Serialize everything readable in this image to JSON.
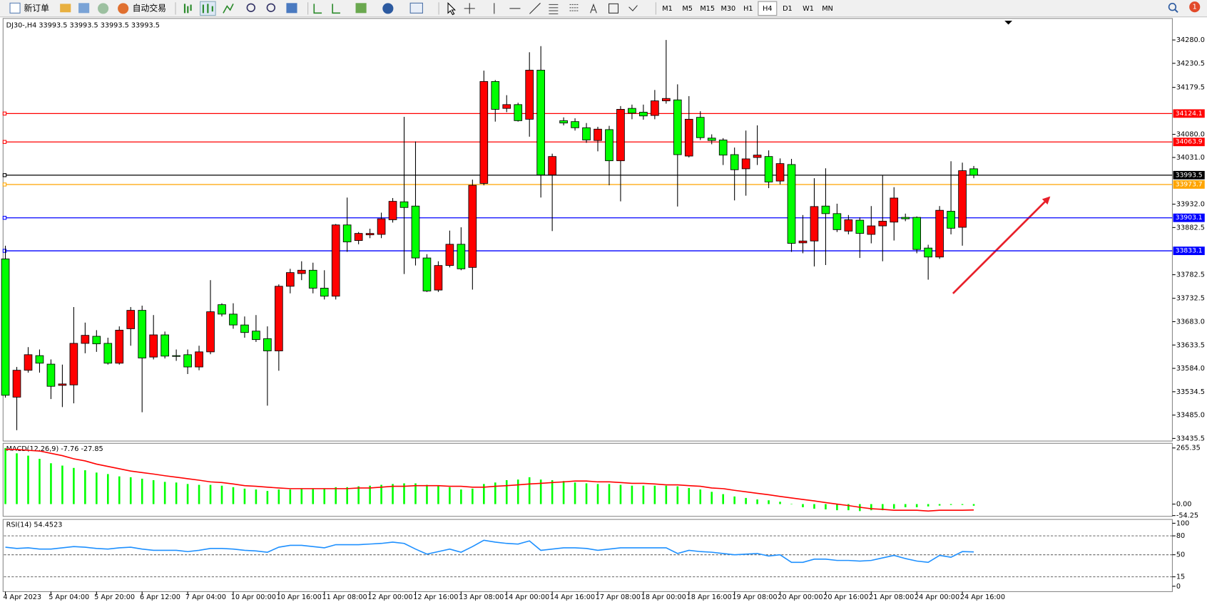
{
  "toolbar": {
    "new_order": "新订单",
    "auto_trading": "自动交易",
    "timeframes": [
      "M1",
      "M5",
      "M15",
      "M30",
      "H1",
      "H4",
      "D1",
      "W1",
      "MN"
    ],
    "active_timeframe": 5,
    "notification_count": 1
  },
  "chart_data": [
    {
      "type": "candlestick",
      "title": "DJ30-,H4  33993.5 33993.5 33993.5 33993.5",
      "categories": [
        "4 Apr 2023",
        null,
        null,
        null,
        "5 Apr 04:00",
        null,
        null,
        null,
        "5 Apr 20:00",
        null,
        null,
        null,
        "6 Apr 12:00",
        null,
        null,
        null,
        "7 Apr 04:00",
        null,
        null,
        null,
        "10 Apr 00:00",
        null,
        null,
        null,
        "10 Apr 16:00",
        null,
        null,
        null,
        "11 Apr 08:00",
        null,
        null,
        null,
        "12 Apr 00:00",
        null,
        null,
        null,
        "12 Apr 16:00",
        null,
        null,
        null,
        "13 Apr 08:00",
        null,
        null,
        null,
        "14 Apr 00:00",
        null,
        null,
        null,
        "14 Apr 16:00",
        null,
        null,
        null,
        "17 Apr 08:00",
        null,
        null,
        null,
        "18 Apr 00:00",
        null,
        null,
        null,
        "18 Apr 16:00",
        null,
        null,
        null,
        "19 Apr 08:00",
        null,
        null,
        null,
        "20 Apr 00:00",
        null,
        null,
        null,
        "20 Apr 16:00",
        null,
        null,
        null,
        "21 Apr 08:00",
        null,
        null,
        null,
        "24 Apr 00:00",
        null,
        null,
        null,
        "24 Apr 16:00",
        null
      ],
      "open": [
        33816,
        33523,
        33580,
        33611,
        33593,
        33548,
        33549,
        33637,
        33652,
        33637,
        33595,
        33668,
        33707,
        33608,
        33655,
        33611,
        33613,
        33587,
        33619,
        33719,
        33699,
        33676,
        33663,
        33647,
        33621,
        33758,
        33785,
        33792,
        33754,
        33737,
        33888,
        33855,
        33867,
        33868,
        33899,
        33937,
        33928,
        33818,
        33750,
        33802,
        33847,
        33798,
        33976,
        34192,
        34135,
        34143,
        34112,
        34216,
        33994,
        34109,
        34107,
        34094,
        34067,
        34090,
        34024,
        34135,
        34127,
        34120,
        34151,
        34153,
        34034,
        34116,
        34072,
        34068,
        34037,
        34007,
        34031,
        34033,
        33981,
        34016,
        33850,
        33854,
        33928,
        33912,
        33875,
        33898,
        33868,
        33886,
        33894,
        33904,
        33904,
        33839,
        33820,
        33917,
        33883,
        34007
      ],
      "high": [
        33844,
        33587,
        33629,
        33624,
        33603,
        33592,
        33714,
        33681,
        33665,
        33649,
        33673,
        33714,
        33717,
        33697,
        33662,
        33624,
        33624,
        33632,
        33771,
        33722,
        33722,
        33694,
        33697,
        33673,
        33762,
        33795,
        33811,
        33808,
        33792,
        33890,
        33946,
        33873,
        33880,
        33914,
        33945,
        34117,
        34065,
        33826,
        33811,
        33876,
        33883,
        33984,
        34215,
        34195,
        34163,
        34147,
        34254,
        34267,
        34039,
        34116,
        34114,
        34104,
        34096,
        34098,
        34140,
        34143,
        34143,
        34174,
        34280,
        34186,
        34161,
        34129,
        34080,
        34072,
        34052,
        34088,
        34099,
        34046,
        34029,
        34028,
        33909,
        33987,
        34008,
        33933,
        33909,
        33904,
        33928,
        33994,
        33968,
        33912,
        33906,
        33846,
        33928,
        34023,
        34020,
        34013
      ],
      "low": [
        33522,
        33453,
        33575,
        33575,
        33519,
        33502,
        33510,
        33616,
        33619,
        33592,
        33592,
        33632,
        33491,
        33603,
        33605,
        33600,
        33572,
        33580,
        33614,
        33694,
        33668,
        33649,
        33640,
        33505,
        33579,
        33743,
        33771,
        33743,
        33730,
        33730,
        33831,
        33847,
        33860,
        33860,
        33893,
        33784,
        33802,
        33746,
        33746,
        33798,
        33792,
        33751,
        33972,
        34107,
        34127,
        34107,
        34075,
        33946,
        33875,
        34099,
        34088,
        34062,
        34044,
        33972,
        33938,
        34112,
        34111,
        34112,
        34145,
        33927,
        34031,
        34068,
        34059,
        34015,
        33940,
        33950,
        34015,
        33966,
        33974,
        33831,
        33828,
        33800,
        33803,
        33873,
        33868,
        33818,
        33849,
        33811,
        33855,
        33896,
        33828,
        33772,
        33816,
        33868,
        33844,
        33987
      ],
      "close": [
        33527,
        33580,
        33613,
        33595,
        33546,
        33551,
        33637,
        33654,
        33636,
        33595,
        33665,
        33707,
        33606,
        33655,
        33610,
        33610,
        33587,
        33619,
        33704,
        33699,
        33676,
        33660,
        33645,
        33621,
        33758,
        33787,
        33792,
        33754,
        33737,
        33888,
        33852,
        33870,
        33870,
        33901,
        33938,
        33925,
        33818,
        33748,
        33802,
        33847,
        33795,
        33972,
        34192,
        34133,
        34143,
        34109,
        34216,
        33994,
        34033,
        34104,
        34094,
        34068,
        34091,
        34024,
        34133,
        34125,
        34119,
        34151,
        34156,
        34037,
        34112,
        34073,
        34067,
        34036,
        34005,
        34028,
        34036,
        33979,
        34018,
        33849,
        33854,
        33927,
        33912,
        33878,
        33899,
        33870,
        33886,
        33896,
        33945,
        33901,
        33836,
        33820,
        33919,
        33881,
        34003,
        33993.5
      ],
      "up_color": "#ff0000",
      "down_color": "#00ff00",
      "wick_color": "#000000",
      "levels": [
        {
          "value": 34124.1,
          "color": "#ff0000"
        },
        {
          "value": 34063.9,
          "color": "#ff0000"
        },
        {
          "value": 33993.5,
          "color": "#000000"
        },
        {
          "value": 33973.7,
          "color": "#ffa500"
        },
        {
          "value": 33903.1,
          "color": "#0000ff"
        },
        {
          "value": 33833.1,
          "color": "#0000ff"
        }
      ],
      "ylim": [
        33430,
        34324
      ],
      "yticks": [
        {
          "value": 34280,
          "label": "34280.0"
        },
        34230.5,
        34179.5,
        {
          "value": 34080,
          "label": "34080.0"
        },
        {
          "value": 34031,
          "label": "34031.0"
        },
        {
          "value": 33932,
          "label": "33932.0"
        },
        33882.5,
        33782.5,
        33732.5,
        {
          "value": 33683,
          "label": "33683.0"
        },
        33633.5,
        {
          "value": 33584,
          "label": "33584.0"
        },
        33534.5,
        {
          "value": 33485,
          "label": "33485.0"
        },
        33435.5
      ]
    },
    {
      "type": "macd",
      "title": "MACD(12,26,9) -7.76 -27.85",
      "histogram": {
        "color": "#00ff00",
        "values": [
          265,
          240,
          229,
          214,
          193,
          182,
          171,
          160,
          149,
          142,
          131,
          127,
          120,
          113,
          105,
          102,
          95,
          91,
          91,
          87,
          80,
          73,
          69,
          62,
          69,
          69,
          73,
          73,
          73,
          80,
          80,
          84,
          87,
          91,
          95,
          98,
          98,
          91,
          87,
          80,
          69,
          73,
          95,
          102,
          113,
          116,
          127,
          116,
          113,
          109,
          102,
          98,
          95,
          95,
          91,
          87,
          87,
          87,
          87,
          84,
          76,
          69,
          58,
          47,
          36,
          29,
          22,
          18,
          11,
          1,
          -15,
          -22,
          -25,
          -29,
          -29,
          -33,
          -29,
          -29,
          -22,
          -15,
          -15,
          -11,
          -7,
          -4,
          -4,
          -7.76
        ]
      },
      "signal": {
        "color": "#ff0000",
        "values": [
          258,
          258,
          254,
          251,
          240,
          229,
          214,
          204,
          189,
          178,
          167,
          156,
          149,
          142,
          134,
          127,
          120,
          113,
          105,
          102,
          95,
          87,
          84,
          80,
          76,
          73,
          73,
          73,
          73,
          73,
          73,
          76,
          76,
          80,
          84,
          84,
          87,
          87,
          87,
          84,
          84,
          80,
          80,
          84,
          87,
          91,
          95,
          98,
          102,
          105,
          109,
          109,
          105,
          105,
          102,
          98,
          98,
          95,
          91,
          91,
          87,
          84,
          76,
          73,
          65,
          58,
          51,
          44,
          36,
          29,
          22,
          15,
          7,
          0,
          -7,
          -15,
          -22,
          -25,
          -29,
          -29,
          -29,
          -33,
          -29,
          -29,
          -29,
          -27.85
        ]
      },
      "ylim": [
        -54.25,
        265.35
      ],
      "yticks": [
        265.35,
        {
          "value": 0,
          "label": "0.00"
        },
        -54.25
      ]
    },
    {
      "type": "rsi",
      "title": "RSI(14) 54.4523",
      "color": "#1e90ff",
      "values": [
        62,
        60,
        61,
        59,
        59,
        61,
        63,
        62,
        60,
        59,
        61,
        62,
        59,
        57,
        57,
        57,
        55,
        57,
        60,
        60,
        59,
        57,
        56,
        54,
        62,
        65,
        65,
        63,
        61,
        66,
        66,
        66,
        67,
        68,
        70,
        68,
        59,
        51,
        55,
        59,
        54,
        63,
        73,
        70,
        68,
        67,
        72,
        57,
        59,
        61,
        61,
        60,
        57,
        59,
        61,
        61,
        61,
        61,
        61,
        52,
        57,
        55,
        54,
        52,
        50,
        51,
        52,
        48,
        50,
        38,
        38,
        43,
        43,
        41,
        41,
        40,
        41,
        45,
        49,
        44,
        40,
        38,
        49,
        46,
        55,
        54.4523
      ],
      "ylim": [
        0,
        100
      ],
      "yticks": [
        100,
        80,
        50,
        15,
        0
      ]
    }
  ]
}
